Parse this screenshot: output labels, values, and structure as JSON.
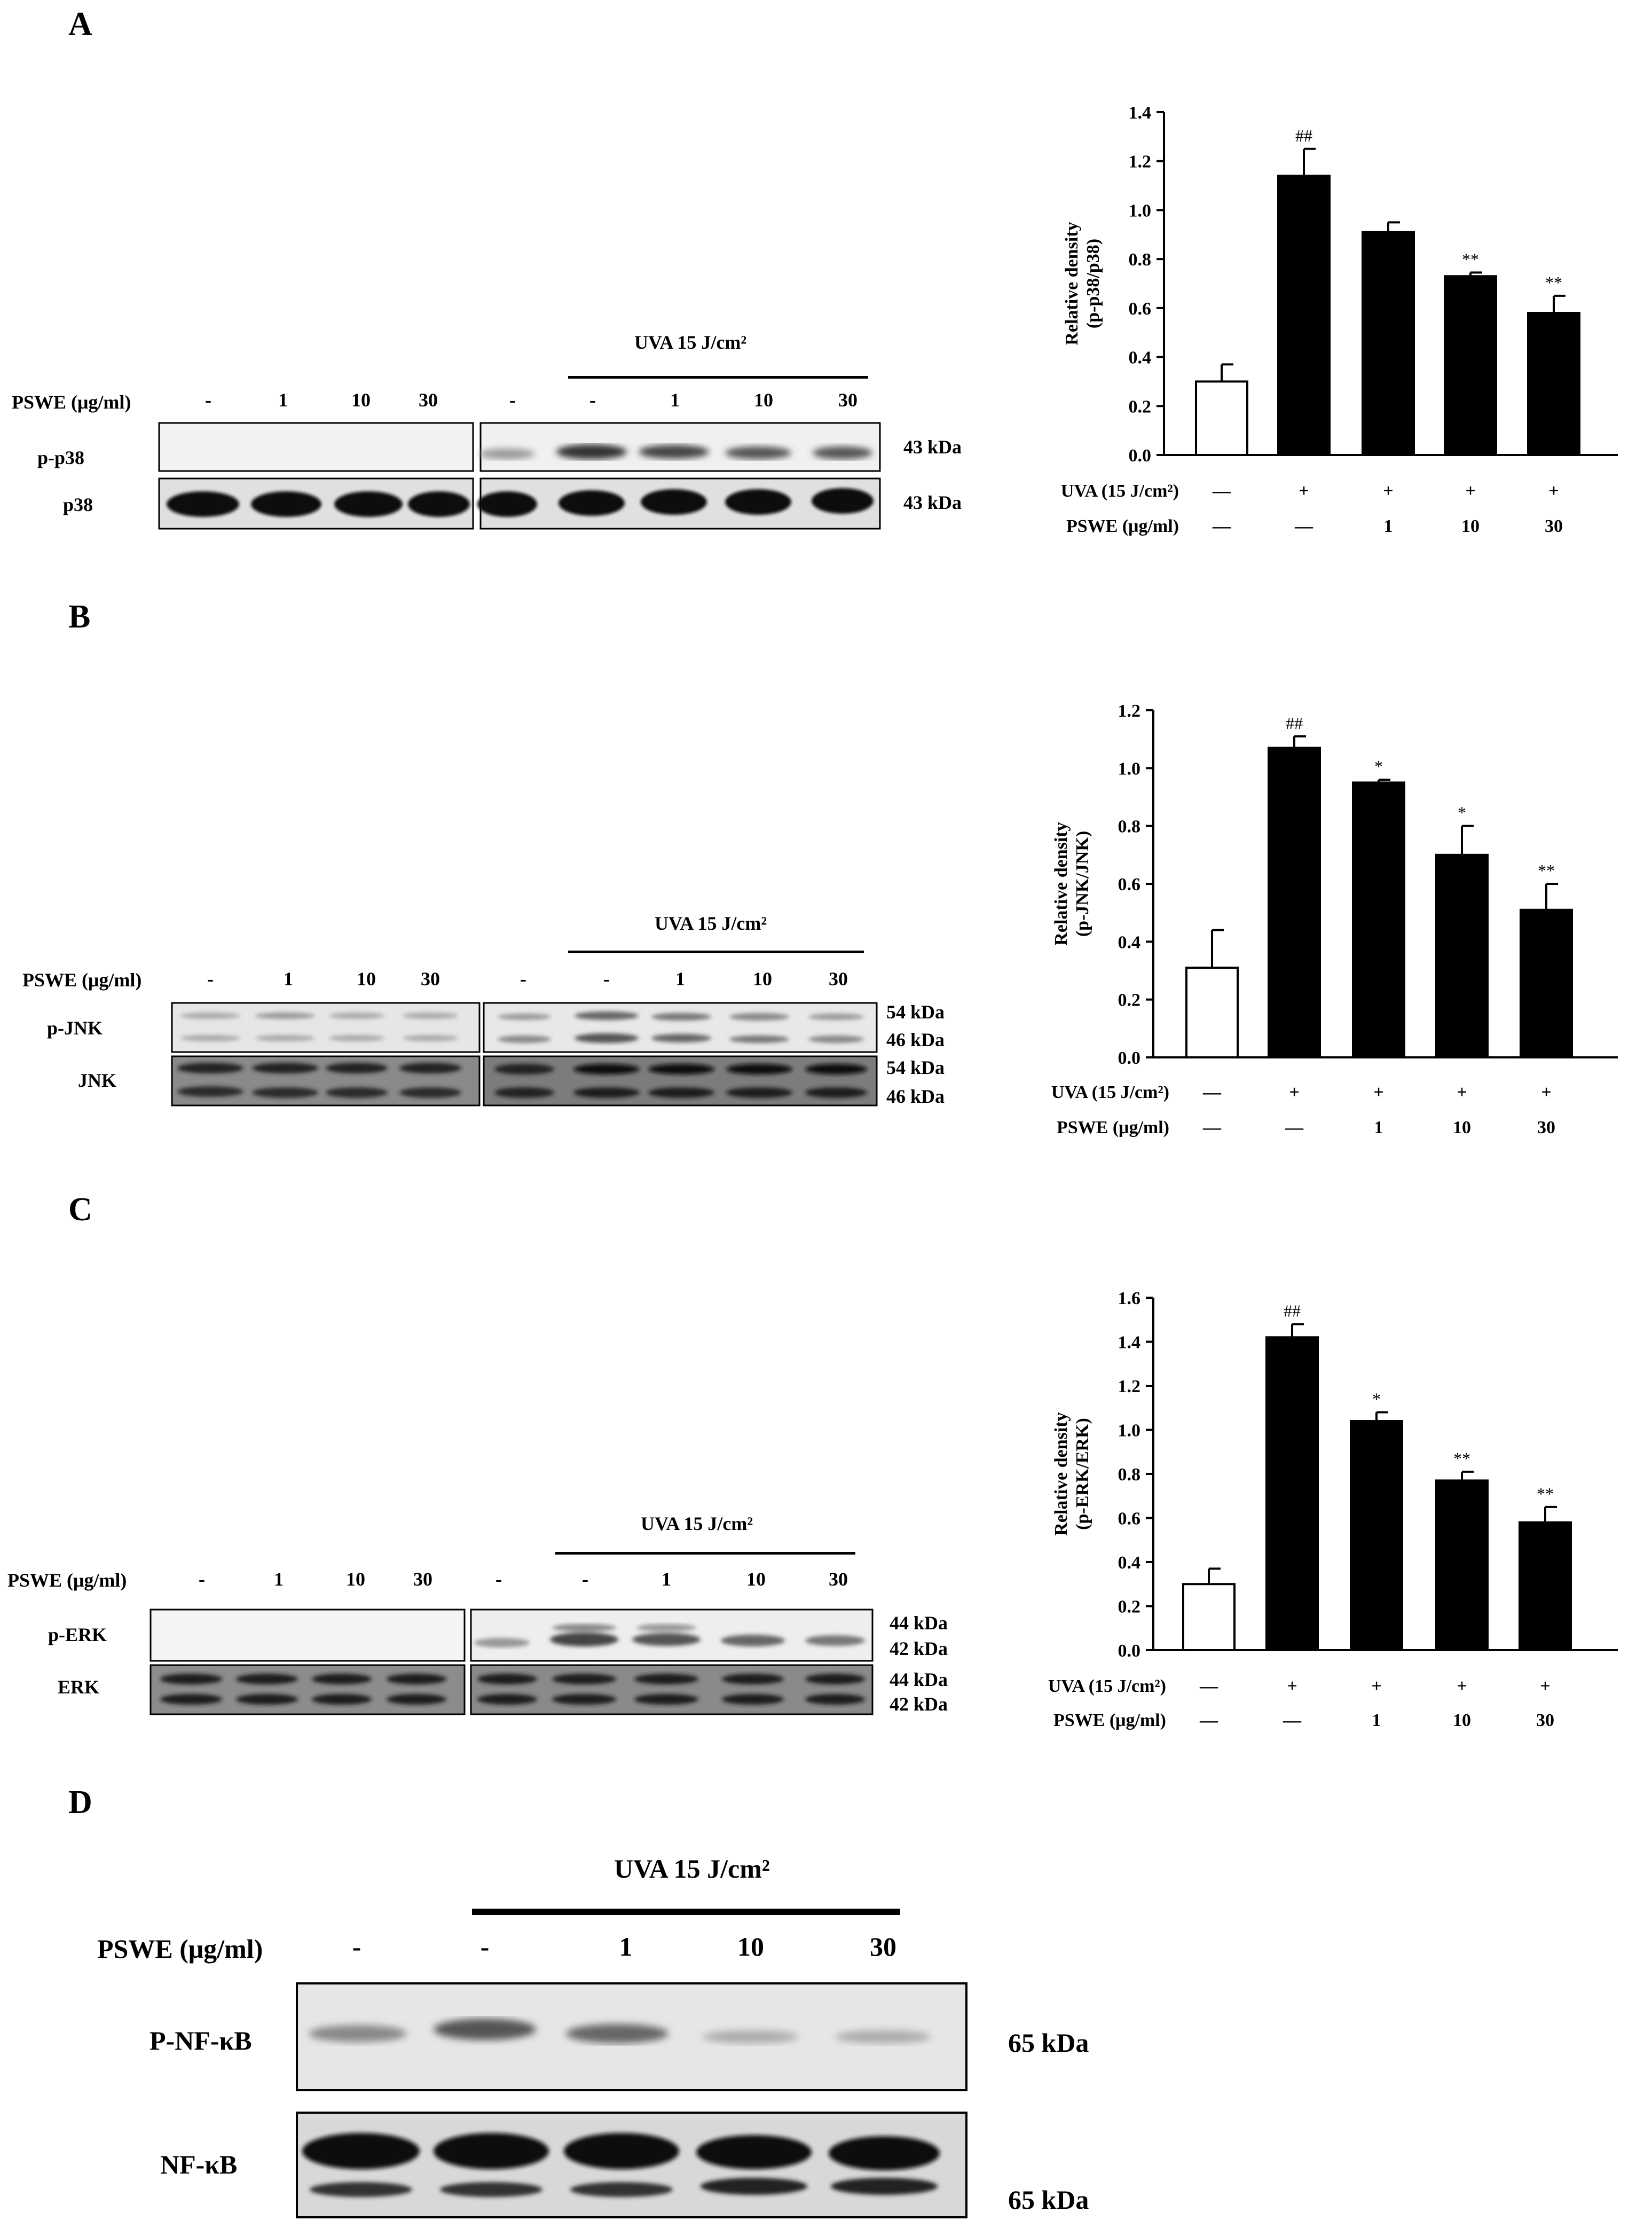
{
  "panels": {
    "A": {
      "label": "A",
      "uva_header": "UVA 15 J/cm²",
      "pswe_label": "PSWE (μg/ml)",
      "lane_labels": [
        "-",
        "1",
        "10",
        "30",
        "-",
        "-",
        "1",
        "10",
        "30"
      ],
      "rows": [
        {
          "name": "p-p38",
          "kda": [
            "43 kDa"
          ]
        },
        {
          "name": "p38",
          "kda": [
            "43 kDa"
          ]
        }
      ]
    },
    "B": {
      "label": "B",
      "uva_header": "UVA 15 J/cm²",
      "pswe_label": "PSWE (μg/ml)",
      "lane_labels": [
        "-",
        "1",
        "10",
        "30",
        "-",
        "-",
        "1",
        "10",
        "30"
      ],
      "rows": [
        {
          "name": "p-JNK",
          "kda": [
            "54 kDa",
            "46 kDa"
          ]
        },
        {
          "name": "JNK",
          "kda": [
            "54 kDa",
            "46 kDa"
          ]
        }
      ]
    },
    "C": {
      "label": "C",
      "uva_header": "UVA 15 J/cm²",
      "pswe_label": "PSWE (μg/ml)",
      "lane_labels": [
        "-",
        "1",
        "10",
        "30",
        "-",
        "-",
        "1",
        "10",
        "30"
      ],
      "rows": [
        {
          "name": "p-ERK",
          "kda": [
            "44 kDa",
            "42 kDa"
          ]
        },
        {
          "name": "ERK",
          "kda": [
            "44 kDa",
            "42 kDa"
          ]
        }
      ]
    },
    "D": {
      "label": "D",
      "uva_header": "UVA 15 J/cm²",
      "pswe_label": "PSWE (μg/ml)",
      "lane_labels": [
        "-",
        "-",
        "1",
        "10",
        "30"
      ],
      "rows": [
        {
          "name": "P-NF-κB",
          "kda": [
            "65 kDa"
          ]
        },
        {
          "name": "NF-κB",
          "kda": [
            "65 kDa"
          ]
        }
      ]
    }
  },
  "chart_data": [
    {
      "panel": "A",
      "type": "bar",
      "ylabel": "Relative density (p-p38/p38)",
      "ylim": [
        0,
        1.4
      ],
      "yticks": [
        "0.0",
        "0.2",
        "0.4",
        "0.6",
        "0.8",
        "1.0",
        "1.2",
        "1.4"
      ],
      "values": [
        0.3,
        1.14,
        0.91,
        0.73,
        0.58
      ],
      "errors": [
        0.07,
        0.11,
        0.04,
        0.015,
        0.07
      ],
      "annotations": [
        "",
        "##",
        "",
        "**",
        "**"
      ],
      "bar_fill": [
        "#ffffff",
        "#000000",
        "#000000",
        "#000000",
        "#000000"
      ],
      "row1_label": "UVA  (15 J/cm²)",
      "row1": [
        "—",
        "+",
        "+",
        "+",
        "+"
      ],
      "row2_label": "PSWE (μg/ml)",
      "row2": [
        "—",
        "—",
        "1",
        "10",
        "30"
      ]
    },
    {
      "panel": "B",
      "type": "bar",
      "ylabel": "Relative density (p-JNK/JNK)",
      "ylim": [
        0,
        1.2
      ],
      "yticks": [
        "0.0",
        "0.2",
        "0.4",
        "0.6",
        "0.8",
        "1.0",
        "1.2"
      ],
      "values": [
        0.31,
        1.07,
        0.95,
        0.7,
        0.51
      ],
      "errors": [
        0.13,
        0.04,
        0.01,
        0.1,
        0.09
      ],
      "annotations": [
        "",
        "##",
        "*",
        "*",
        "**"
      ],
      "bar_fill": [
        "#ffffff",
        "#000000",
        "#000000",
        "#000000",
        "#000000"
      ],
      "row1_label": "UVA  (15 J/cm²)",
      "row1": [
        "—",
        "+",
        "+",
        "+",
        "+"
      ],
      "row2_label": "PSWE (μg/ml)",
      "row2": [
        "—",
        "—",
        "1",
        "10",
        "30"
      ]
    },
    {
      "panel": "C",
      "type": "bar",
      "ylabel": "Relative density (p-ERK/ERK)",
      "ylim": [
        0,
        1.6
      ],
      "yticks": [
        "0.0",
        "0.2",
        "0.4",
        "0.6",
        "0.8",
        "1.0",
        "1.2",
        "1.4",
        "1.6"
      ],
      "values": [
        0.3,
        1.42,
        1.04,
        0.77,
        0.58
      ],
      "errors": [
        0.07,
        0.06,
        0.04,
        0.04,
        0.07
      ],
      "annotations": [
        "",
        "##",
        "*",
        "**",
        "**"
      ],
      "bar_fill": [
        "#ffffff",
        "#000000",
        "#000000",
        "#000000",
        "#000000"
      ],
      "row1_label": "UVA  (15 J/cm²)",
      "row1": [
        "—",
        "+",
        "+",
        "+",
        "+"
      ],
      "row2_label": "PSWE (μg/ml)",
      "row2": [
        "—",
        "—",
        "1",
        "10",
        "30"
      ]
    }
  ]
}
